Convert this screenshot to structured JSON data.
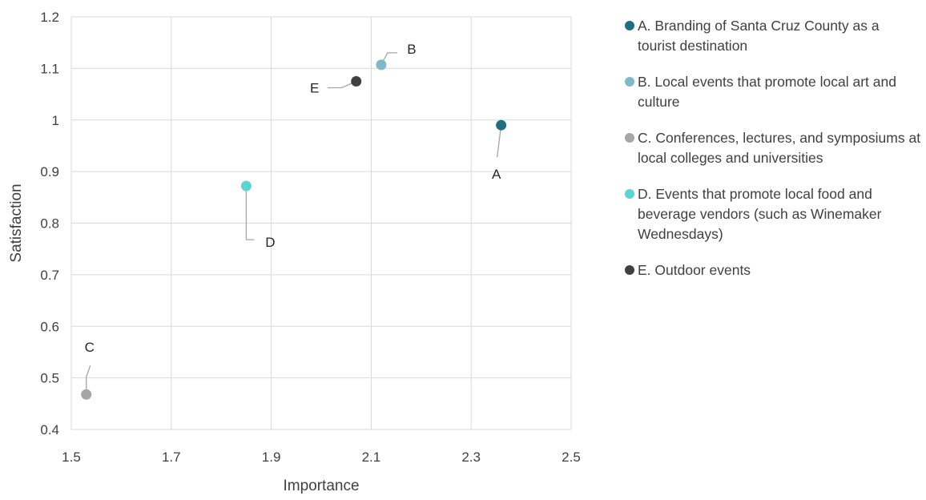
{
  "chart_data": {
    "type": "scatter",
    "xlabel": "Importance",
    "ylabel": "Satisfaction",
    "xlim": [
      1.5,
      2.5
    ],
    "ylim": [
      0.4,
      1.2
    ],
    "xticks": [
      "1.5",
      "1.7",
      "1.9",
      "2.1",
      "2.3",
      "2.5"
    ],
    "yticks": [
      "0.4",
      "0.5",
      "0.6",
      "0.7",
      "0.8",
      "0.9",
      "1",
      "1.1",
      "1.2"
    ],
    "grid": true,
    "legend_position": "right",
    "points": [
      {
        "label": "A",
        "x": 2.36,
        "y": 0.99,
        "color": "#1f6f7f",
        "legend": "A. Branding of Santa Cruz County as a tourist destination"
      },
      {
        "label": "B",
        "x": 2.12,
        "y": 1.107,
        "color": "#7fb9c9",
        "legend": "B. Local events that promote local art and culture"
      },
      {
        "label": "C",
        "x": 1.53,
        "y": 0.468,
        "color": "#a6a6a6",
        "legend": "C. Conferences, lectures, and symposiums at local colleges and universities"
      },
      {
        "label": "D",
        "x": 1.85,
        "y": 0.872,
        "color": "#5ed3d3",
        "legend": "D. Events that promote local food and beverage vendors (such as Winemaker Wednesdays)"
      },
      {
        "label": "E",
        "x": 2.07,
        "y": 1.075,
        "color": "#404040",
        "legend": "E. Outdoor events"
      }
    ]
  }
}
